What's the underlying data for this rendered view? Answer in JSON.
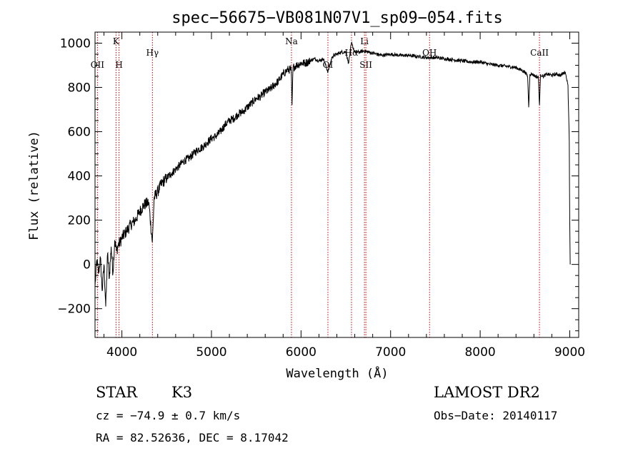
{
  "chart_data": {
    "type": "line",
    "title": "spec−56675−VB081N07V1_sp09−054.fits",
    "xlabel": "Wavelength (Å)",
    "ylabel": "Flux (relative)",
    "xlim": [
      3700,
      9100
    ],
    "ylim": [
      -330,
      1050
    ],
    "x_ticks": [
      4000,
      5000,
      6000,
      7000,
      8000,
      9000
    ],
    "y_ticks": [
      -200,
      0,
      200,
      400,
      600,
      800,
      1000
    ],
    "x_tick_labels": [
      "4000",
      "5000",
      "6000",
      "7000",
      "8000",
      "9000"
    ],
    "y_tick_labels": [
      "−200",
      "0",
      "200",
      "400",
      "600",
      "800",
      "1000"
    ],
    "grid": false,
    "line_color": "#000000",
    "marker_color": "#cc0000",
    "series": [
      {
        "x": [
          3700,
          3720,
          3740,
          3760,
          3780,
          3800,
          3820,
          3840,
          3860,
          3880,
          3900,
          3920,
          3940,
          3960,
          3980,
          4000,
          4050,
          4100,
          4150,
          4200,
          4250,
          4300,
          4340,
          4360,
          4400,
          4450,
          4500,
          4550,
          4600,
          4650,
          4700,
          4750,
          4800,
          4850,
          4900,
          4950,
          5000,
          5050,
          5100,
          5150,
          5200,
          5250,
          5300,
          5350,
          5400,
          5450,
          5500,
          5550,
          5600,
          5650,
          5700,
          5750,
          5800,
          5850,
          5890,
          5900,
          5910,
          5950,
          6000,
          6050,
          6100,
          6150,
          6200,
          6250,
          6300,
          6350,
          6400,
          6450,
          6500,
          6530,
          6563,
          6600,
          6650,
          6700,
          6750,
          6800,
          6900,
          7000,
          7100,
          7200,
          7300,
          7400,
          7500,
          7600,
          7700,
          7800,
          7900,
          8000,
          8100,
          8200,
          8300,
          8400,
          8450,
          8500,
          8530,
          8542,
          8555,
          8580,
          8620,
          8650,
          8662,
          8675,
          8700,
          8750,
          8800,
          8850,
          8900,
          8950,
          8980,
          8995,
          9000,
          9005
        ],
        "y": [
          -100,
          20,
          -40,
          30,
          -120,
          0,
          -190,
          50,
          -60,
          80,
          -40,
          110,
          60,
          90,
          100,
          120,
          150,
          180,
          200,
          240,
          270,
          280,
          100,
          300,
          330,
          370,
          390,
          410,
          430,
          450,
          470,
          480,
          500,
          520,
          530,
          550,
          570,
          580,
          600,
          630,
          650,
          660,
          680,
          690,
          710,
          730,
          750,
          760,
          780,
          790,
          810,
          830,
          860,
          880,
          880,
          720,
          890,
          900,
          910,
          910,
          920,
          930,
          920,
          930,
          870,
          940,
          950,
          960,
          960,
          910,
          1000,
          960,
          960,
          965,
          960,
          955,
          945,
          950,
          945,
          945,
          940,
          935,
          935,
          930,
          925,
          920,
          915,
          915,
          905,
          900,
          895,
          890,
          880,
          870,
          850,
          710,
          860,
          860,
          850,
          845,
          720,
          860,
          850,
          860,
          855,
          860,
          855,
          870,
          810,
          560,
          180,
          0
        ]
      }
    ],
    "line_markers": [
      {
        "wavelength": 3727,
        "label": "OII",
        "label_row": "low"
      },
      {
        "wavelength": 3934,
        "label": "K",
        "label_row": "top"
      },
      {
        "wavelength": 3968,
        "label": "H",
        "label_row": "low"
      },
      {
        "wavelength": 4341,
        "label": "Hγ",
        "label_row": "mid"
      },
      {
        "wavelength": 5893,
        "label": "Na",
        "label_row": "top"
      },
      {
        "wavelength": 6300,
        "label": "OI",
        "label_row": "low"
      },
      {
        "wavelength": 6563,
        "label": "Hα",
        "label_row": "mid"
      },
      {
        "wavelength": 6708,
        "label": "Li",
        "label_row": "top"
      },
      {
        "wavelength": 6724,
        "label": "SII",
        "label_row": "low"
      },
      {
        "wavelength": 7435,
        "label": "OH",
        "label_row": "mid"
      },
      {
        "wavelength": 8662,
        "label": "CaII",
        "label_row": "mid"
      }
    ]
  },
  "info": {
    "star_class": "STAR",
    "subclass": "K3",
    "cz": "cz = −74.9 ± 0.7 km/s",
    "radec": "RA =  82.52636, DEC =   8.17042",
    "survey": "LAMOST DR2",
    "obs_date": "Obs−Date: 20140117"
  }
}
